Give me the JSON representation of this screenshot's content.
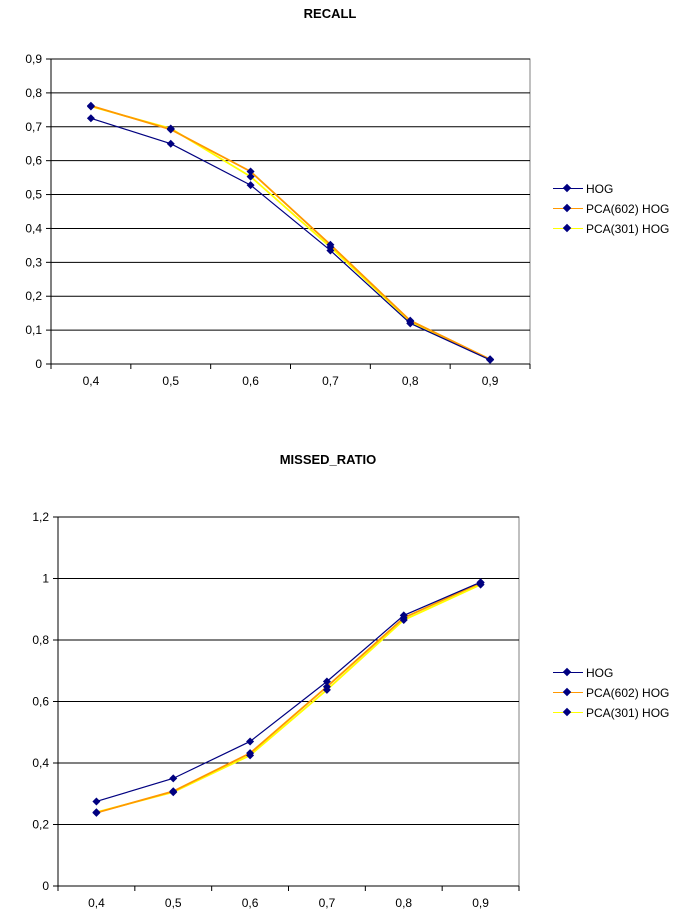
{
  "charts": [
    {
      "id": "recall",
      "chart_data": {
        "type": "line",
        "title": "RECALL",
        "xlabel": "",
        "ylabel": "",
        "categories": [
          "0,4",
          "0,5",
          "0,6",
          "0,7",
          "0,8",
          "0,9"
        ],
        "x": [
          0.4,
          0.5,
          0.6,
          0.7,
          0.8,
          0.9
        ],
        "ylim": [
          0,
          0.9
        ],
        "ytick_step": 0.1,
        "yticks": [
          "0",
          "0,1",
          "0,2",
          "0,3",
          "0,4",
          "0,5",
          "0,6",
          "0,7",
          "0,8",
          "0,9"
        ],
        "grid": "horizontal",
        "legend": "right",
        "series": [
          {
            "name": "HOG",
            "values": [
              0.725,
              0.65,
              0.528,
              0.335,
              0.12,
              0.012
            ],
            "color": "#000080",
            "marker": "#000080"
          },
          {
            "name": "PCA(602) HOG",
            "values": [
              0.762,
              0.692,
              0.568,
              0.352,
              0.128,
              0.014
            ],
            "color": "#FF9900",
            "marker": "#000080"
          },
          {
            "name": "PCA(301) HOG",
            "values": [
              0.76,
              0.695,
              0.553,
              0.345,
              0.125,
              0.013
            ],
            "color": "#FFFF00",
            "marker": "#000080"
          }
        ]
      }
    },
    {
      "id": "missed",
      "chart_data": {
        "type": "line",
        "title": "MISSED_RATIO",
        "xlabel": "",
        "ylabel": "",
        "categories": [
          "0,4",
          "0,5",
          "0,6",
          "0,7",
          "0,8",
          "0,9"
        ],
        "x": [
          0.4,
          0.5,
          0.6,
          0.7,
          0.8,
          0.9
        ],
        "ylim": [
          0,
          1.2
        ],
        "ytick_step": 0.2,
        "yticks": [
          "0",
          "0,2",
          "0,4",
          "0,6",
          "0,8",
          "1",
          "1,2"
        ],
        "grid": "horizontal",
        "legend": "right",
        "series": [
          {
            "name": "HOG",
            "values": [
              0.275,
              0.35,
              0.47,
              0.665,
              0.88,
              0.988
            ],
            "color": "#000080",
            "marker": "#000080"
          },
          {
            "name": "PCA(602) HOG",
            "values": [
              0.238,
              0.308,
              0.432,
              0.648,
              0.872,
              0.986
            ],
            "color": "#FF9900",
            "marker": "#000080"
          },
          {
            "name": "PCA(301) HOG",
            "values": [
              0.24,
              0.305,
              0.425,
              0.638,
              0.865,
              0.98
            ],
            "color": "#FFFF00",
            "marker": "#000080"
          }
        ]
      }
    }
  ]
}
